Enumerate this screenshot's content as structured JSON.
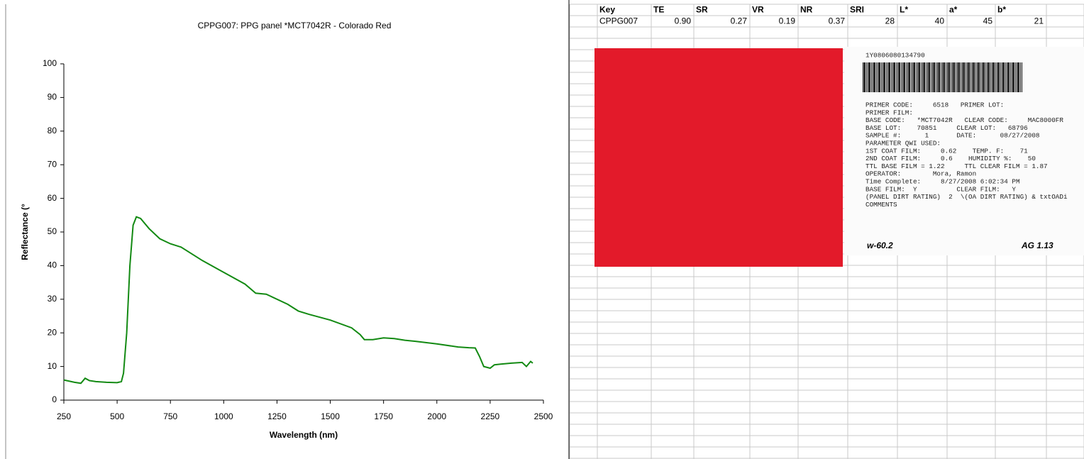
{
  "chart_data": {
    "type": "line",
    "title": "CPPG007: PPG panel *MCT7042R - Colorado Red",
    "x_label": "Wavelength (nm)",
    "y_label": "Reflectance (°",
    "x": [
      250,
      300,
      330,
      350,
      370,
      400,
      450,
      500,
      520,
      530,
      545,
      560,
      575,
      590,
      610,
      650,
      700,
      750,
      800,
      900,
      1000,
      1100,
      1150,
      1200,
      1300,
      1350,
      1400,
      1500,
      1600,
      1640,
      1660,
      1700,
      1750,
      1800,
      1850,
      1900,
      2000,
      2100,
      2150,
      2180,
      2200,
      2220,
      2250,
      2270,
      2300,
      2350,
      2400,
      2420,
      2440,
      2450
    ],
    "series": [
      {
        "name": "CPPG007",
        "color": "#138a13",
        "values": [
          6,
          5.3,
          5,
          6.5,
          5.8,
          5.5,
          5.3,
          5.2,
          5.5,
          8,
          20,
          40,
          52,
          54.5,
          54,
          51,
          48,
          46.5,
          45.5,
          41.5,
          38,
          34.5,
          31.8,
          31.5,
          28.5,
          26.5,
          25.5,
          23.8,
          21.5,
          19.5,
          18,
          18,
          18.5,
          18.3,
          17.8,
          17.5,
          16.7,
          15.8,
          15.6,
          15.5,
          13,
          10,
          9.5,
          10.5,
          10.7,
          11,
          11.2,
          10,
          11.5,
          11
        ]
      }
    ],
    "xlim": [
      250,
      2500
    ],
    "xticks": [
      250,
      500,
      750,
      1000,
      1250,
      1500,
      1750,
      2000,
      2250,
      2500
    ],
    "ylim": [
      0,
      100
    ],
    "yticks": [
      0,
      10,
      20,
      30,
      40,
      50,
      60,
      70,
      80,
      90,
      100
    ]
  },
  "table": {
    "header": [
      "Key",
      "TE",
      "SR",
      "VR",
      "NR",
      "SRI",
      "L*",
      "a*",
      "b*"
    ],
    "rows": [
      [
        "CPPG007",
        "0.90",
        "0.27",
        "0.19",
        "0.37",
        "28",
        "40",
        "45",
        "21"
      ]
    ]
  },
  "panel_label": {
    "serial": "1Y0806080134790",
    "lines": [
      "PRIMER CODE:     6518   PRIMER LOT:",
      "PRIMER FILM:",
      "BASE CODE:   *MCT7042R   CLEAR CODE:     MAC8000FR",
      "BASE LOT:    70851     CLEAR LOT:   68796",
      "SAMPLE #:      1       DATE:      08/27/2008",
      "PARAMETER QWI USED:",
      "1ST COAT FILM:     0.62    TEMP. F:    71",
      "2ND COAT FILM:     0.6    HUMIDITY %:    50",
      "TTL BASE FILM = 1.22     TTL CLEAR FILM = 1.87",
      "OPERATOR:        Mora, Ramon",
      "Time Complete:     8/27/2008 6:02:34 PM",
      "BASE FILM:  Y          CLEAR FILM:   Y",
      "(PANEL DIRT RATING)  2  \\(OA DIRT RATING) & txtOADi",
      "COMMENTS"
    ],
    "handwritten_left": "w-60.2",
    "handwritten_right": "AG 1.13"
  }
}
